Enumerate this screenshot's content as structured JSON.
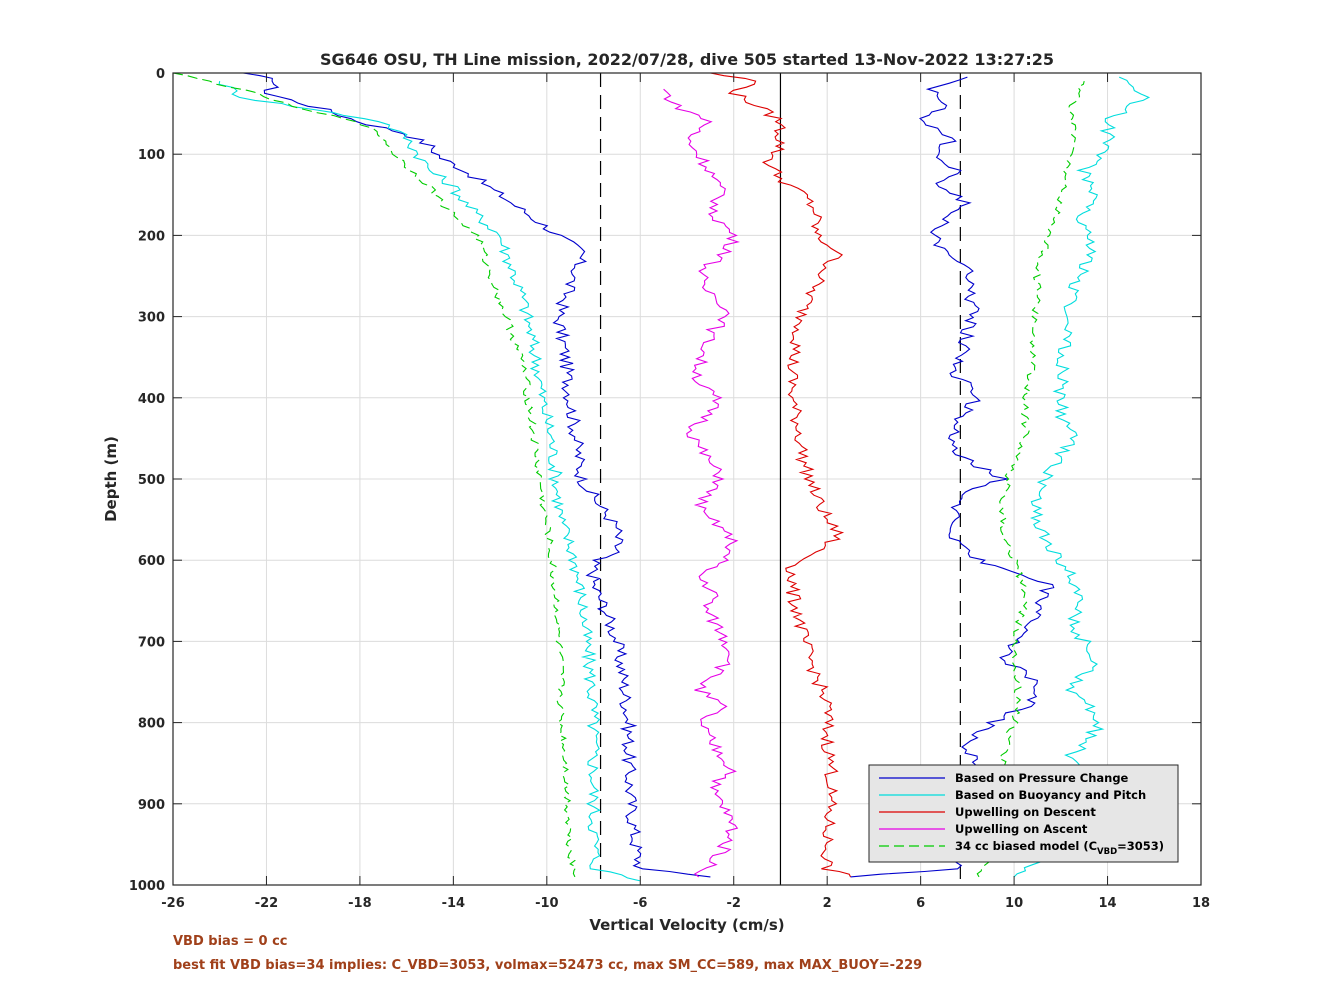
{
  "chart_data": {
    "type": "line",
    "title": "SG646 OSU, TH Line mission, 2022/07/28, dive 505 started 13-Nov-2022 13:27:25",
    "xlabel": "Vertical Velocity (cm/s)",
    "ylabel": "Depth (m)",
    "xlim": [
      -26,
      18
    ],
    "ylim": [
      0,
      1000
    ],
    "y_reversed": true,
    "grid": true,
    "legend_position": "bottom-right",
    "x_ticks": [
      -26,
      -22,
      -18,
      -14,
      -10,
      -6,
      -2,
      2,
      6,
      10,
      14,
      18
    ],
    "y_ticks": [
      0,
      100,
      200,
      300,
      400,
      500,
      600,
      700,
      800,
      900,
      1000
    ],
    "x_tick_labels": [
      "-26",
      "-22",
      "-18",
      "-14",
      "-10",
      "-6",
      "-2",
      "2",
      "6",
      "10",
      "14",
      "18"
    ],
    "y_tick_labels": [
      "0",
      "100",
      "200",
      "300",
      "400",
      "500",
      "600",
      "700",
      "800",
      "900",
      "1000"
    ],
    "reference_lines": {
      "zero": 0,
      "dashed": [
        -7.7,
        7.7
      ]
    },
    "legend": [
      "Based on Pressure Change",
      "Based on Buoyancy and Pitch",
      "Upwelling on Descent",
      "Upwelling on Ascent",
      "34 cc biased model (C",
      "VBD",
      "=3053)"
    ],
    "series": [
      {
        "name": "Based on Pressure Change",
        "color": "#0000cc",
        "style": "solid",
        "descent": [
          [
            -23,
            0
          ],
          [
            -21.5,
            10
          ],
          [
            -22,
            25
          ],
          [
            -19.5,
            45
          ],
          [
            -18,
            60
          ],
          [
            -16,
            75
          ],
          [
            -15,
            90
          ],
          [
            -14.5,
            105
          ],
          [
            -13.5,
            120
          ],
          [
            -12.5,
            140
          ],
          [
            -11.5,
            160
          ],
          [
            -10.5,
            180
          ],
          [
            -9.5,
            200
          ],
          [
            -8.5,
            220
          ],
          [
            -8.7,
            240
          ],
          [
            -9,
            260
          ],
          [
            -9.5,
            300
          ],
          [
            -9.2,
            350
          ],
          [
            -9,
            400
          ],
          [
            -8.8,
            440
          ],
          [
            -8.6,
            480
          ],
          [
            -8.5,
            500
          ],
          [
            -7.8,
            530
          ],
          [
            -7,
            560
          ],
          [
            -7,
            590
          ],
          [
            -8,
            600
          ],
          [
            -8,
            630
          ],
          [
            -7.5,
            660
          ],
          [
            -7,
            700
          ],
          [
            -6.7,
            750
          ],
          [
            -6.5,
            800
          ],
          [
            -6.5,
            850
          ],
          [
            -6.4,
            900
          ],
          [
            -6.2,
            950
          ],
          [
            -6,
            980
          ],
          [
            -3,
            990
          ]
        ],
        "ascent": [
          [
            3,
            990
          ],
          [
            7.5,
            980
          ],
          [
            7.5,
            940
          ],
          [
            7.5,
            900
          ],
          [
            8.5,
            860
          ],
          [
            8,
            830
          ],
          [
            9,
            800
          ],
          [
            10.5,
            780
          ],
          [
            11,
            760
          ],
          [
            10.5,
            740
          ],
          [
            9.5,
            720
          ],
          [
            10.5,
            690
          ],
          [
            11,
            660
          ],
          [
            11.5,
            630
          ],
          [
            9.5,
            610
          ],
          [
            8.5,
            600
          ],
          [
            7.5,
            580
          ],
          [
            7.5,
            550
          ],
          [
            7.5,
            520
          ],
          [
            9.5,
            500
          ],
          [
            7.5,
            470
          ],
          [
            7.5,
            430
          ],
          [
            8.5,
            400
          ],
          [
            7.5,
            370
          ],
          [
            7.8,
            340
          ],
          [
            8,
            320
          ],
          [
            8.2,
            290
          ],
          [
            8,
            260
          ],
          [
            8.2,
            240
          ],
          [
            7,
            220
          ],
          [
            6.5,
            200
          ],
          [
            7,
            180
          ],
          [
            8,
            160
          ],
          [
            6.8,
            140
          ],
          [
            7.5,
            120
          ],
          [
            6.5,
            100
          ],
          [
            7.5,
            80
          ],
          [
            6,
            60
          ],
          [
            7,
            40
          ],
          [
            6.5,
            20
          ],
          [
            8,
            5
          ]
        ]
      },
      {
        "name": "Based on Buoyancy and Pitch",
        "color": "#00dddd",
        "style": "solid",
        "descent": [
          [
            -24,
            10
          ],
          [
            -23,
            30
          ],
          [
            -20,
            45
          ],
          [
            -17,
            60
          ],
          [
            -16,
            80
          ],
          [
            -15.5,
            100
          ],
          [
            -15,
            120
          ],
          [
            -14,
            140
          ],
          [
            -13.5,
            160
          ],
          [
            -12.8,
            180
          ],
          [
            -12,
            200
          ],
          [
            -11.5,
            240
          ],
          [
            -11,
            280
          ],
          [
            -10.7,
            320
          ],
          [
            -10.4,
            360
          ],
          [
            -10.2,
            400
          ],
          [
            -9.8,
            450
          ],
          [
            -9.6,
            500
          ],
          [
            -9.4,
            550
          ],
          [
            -8.8,
            600
          ],
          [
            -8.5,
            650
          ],
          [
            -8.3,
            700
          ],
          [
            -8.1,
            750
          ],
          [
            -8,
            800
          ],
          [
            -8,
            900
          ],
          [
            -7.9,
            980
          ],
          [
            -6,
            995
          ]
        ],
        "ascent": [
          [
            10,
            990
          ],
          [
            11.5,
            960
          ],
          [
            12.5,
            920
          ],
          [
            13.5,
            880
          ],
          [
            12.5,
            840
          ],
          [
            13.8,
            800
          ],
          [
            12.5,
            760
          ],
          [
            13.5,
            720
          ],
          [
            12.5,
            680
          ],
          [
            12.8,
            640
          ],
          [
            12,
            600
          ],
          [
            11,
            560
          ],
          [
            11,
            520
          ],
          [
            11.8,
            480
          ],
          [
            12.5,
            450
          ],
          [
            12,
            420
          ],
          [
            12,
            380
          ],
          [
            12.2,
            340
          ],
          [
            12.3,
            300
          ],
          [
            12.5,
            260
          ],
          [
            13.5,
            220
          ],
          [
            12.8,
            180
          ],
          [
            13.5,
            150
          ],
          [
            13,
            120
          ],
          [
            14,
            90
          ],
          [
            14,
            60
          ],
          [
            15.5,
            30
          ],
          [
            14.5,
            5
          ]
        ]
      },
      {
        "name": "Upwelling on Descent",
        "color": "#dd0000",
        "style": "solid",
        "points": [
          [
            -3,
            0
          ],
          [
            -1,
            10
          ],
          [
            -2,
            25
          ],
          [
            -1,
            40
          ],
          [
            0,
            60
          ],
          [
            0,
            90
          ],
          [
            -0.5,
            110
          ],
          [
            0,
            130
          ],
          [
            1,
            150
          ],
          [
            1.5,
            170
          ],
          [
            1.5,
            200
          ],
          [
            2.5,
            220
          ],
          [
            2,
            240
          ],
          [
            1.5,
            260
          ],
          [
            1,
            290
          ],
          [
            0.8,
            320
          ],
          [
            0.5,
            360
          ],
          [
            0.5,
            400
          ],
          [
            0.8,
            440
          ],
          [
            1,
            480
          ],
          [
            1.5,
            520
          ],
          [
            2,
            550
          ],
          [
            2.5,
            570
          ],
          [
            1.5,
            590
          ],
          [
            0.5,
            610
          ],
          [
            0.5,
            640
          ],
          [
            0.8,
            670
          ],
          [
            1,
            700
          ],
          [
            1.5,
            740
          ],
          [
            2,
            780
          ],
          [
            2,
            820
          ],
          [
            2.2,
            860
          ],
          [
            2.1,
            900
          ],
          [
            2,
            940
          ],
          [
            2,
            980
          ],
          [
            3,
            990
          ]
        ]
      },
      {
        "name": "Upwelling on Ascent",
        "color": "#e600e6",
        "style": "solid",
        "points": [
          [
            -5,
            20
          ],
          [
            -4.5,
            40
          ],
          [
            -3,
            60
          ],
          [
            -4,
            80
          ],
          [
            -3.5,
            100
          ],
          [
            -3,
            120
          ],
          [
            -2.5,
            150
          ],
          [
            -3,
            170
          ],
          [
            -2,
            200
          ],
          [
            -2.2,
            220
          ],
          [
            -3.2,
            240
          ],
          [
            -3.5,
            260
          ],
          [
            -2.5,
            280
          ],
          [
            -2.2,
            300
          ],
          [
            -3,
            320
          ],
          [
            -3.2,
            340
          ],
          [
            -3.5,
            360
          ],
          [
            -3.5,
            380
          ],
          [
            -2.8,
            400
          ],
          [
            -3,
            420
          ],
          [
            -3.8,
            440
          ],
          [
            -3.5,
            460
          ],
          [
            -3,
            480
          ],
          [
            -2.5,
            500
          ],
          [
            -3.2,
            520
          ],
          [
            -3.5,
            540
          ],
          [
            -2.5,
            560
          ],
          [
            -2,
            580
          ],
          [
            -2.5,
            600
          ],
          [
            -3.5,
            620
          ],
          [
            -2.8,
            640
          ],
          [
            -3.2,
            660
          ],
          [
            -2.5,
            690
          ],
          [
            -2,
            720
          ],
          [
            -2.8,
            740
          ],
          [
            -3.5,
            760
          ],
          [
            -2.5,
            780
          ],
          [
            -3.5,
            800
          ],
          [
            -2.8,
            830
          ],
          [
            -2,
            860
          ],
          [
            -3,
            880
          ],
          [
            -2.5,
            900
          ],
          [
            -2,
            930
          ],
          [
            -2.5,
            960
          ],
          [
            -3.5,
            990
          ]
        ]
      },
      {
        "name": "34 cc biased model (C VBD =3053)",
        "color": "#00cc00",
        "style": "dash",
        "descent": [
          [
            -26,
            0
          ],
          [
            -24.5,
            10
          ],
          [
            -22.5,
            25
          ],
          [
            -20.5,
            45
          ],
          [
            -18,
            60
          ],
          [
            -17,
            80
          ],
          [
            -16.5,
            100
          ],
          [
            -15.8,
            120
          ],
          [
            -15,
            140
          ],
          [
            -14.5,
            160
          ],
          [
            -13.8,
            180
          ],
          [
            -13,
            200
          ],
          [
            -12.5,
            240
          ],
          [
            -12,
            280
          ],
          [
            -11.5,
            320
          ],
          [
            -11,
            360
          ],
          [
            -10.8,
            400
          ],
          [
            -10.6,
            440
          ],
          [
            -10.4,
            480
          ],
          [
            -10.2,
            520
          ],
          [
            -10,
            560
          ],
          [
            -9.8,
            600
          ],
          [
            -9.6,
            650
          ],
          [
            -9.5,
            700
          ],
          [
            -9.4,
            750
          ],
          [
            -9.4,
            800
          ],
          [
            -9.2,
            850
          ],
          [
            -9.1,
            900
          ],
          [
            -9,
            950
          ],
          [
            -8.8,
            990
          ]
        ],
        "ascent": [
          [
            8.5,
            990
          ],
          [
            9,
            960
          ],
          [
            9.5,
            920
          ],
          [
            9.8,
            880
          ],
          [
            9.5,
            840
          ],
          [
            10,
            800
          ],
          [
            10.2,
            760
          ],
          [
            10,
            720
          ],
          [
            10.2,
            680
          ],
          [
            10.5,
            640
          ],
          [
            10,
            600
          ],
          [
            9.5,
            560
          ],
          [
            9.5,
            520
          ],
          [
            10,
            480
          ],
          [
            10.5,
            440
          ],
          [
            10.5,
            400
          ],
          [
            10.8,
            360
          ],
          [
            10.8,
            320
          ],
          [
            11,
            280
          ],
          [
            11,
            240
          ],
          [
            11.5,
            200
          ],
          [
            12,
            160
          ],
          [
            12.2,
            120
          ],
          [
            12.5,
            80
          ],
          [
            12.5,
            40
          ],
          [
            13,
            10
          ]
        ]
      }
    ]
  },
  "notes": {
    "line1": "VBD bias = 0 cc",
    "line2": "best fit VBD bias=34 implies: C_VBD=3053, volmax=52473 cc, max SM_CC=589, max MAX_BUOY=-229"
  }
}
